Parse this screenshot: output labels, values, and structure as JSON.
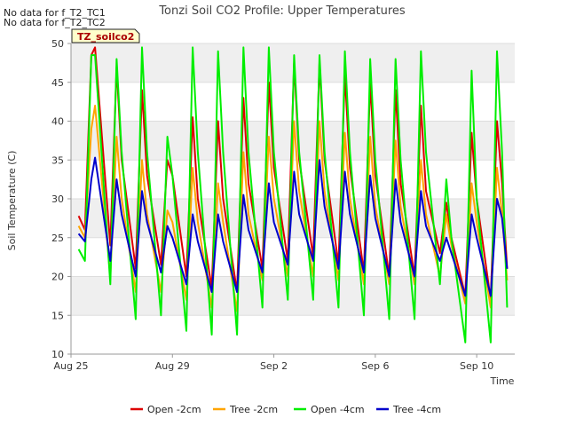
{
  "notes": [
    "No data for f_T2_TC1",
    "No data for f_T2_TC2"
  ],
  "chart_data": {
    "type": "line",
    "title": "Tonzi Soil CO2 Profile: Upper Temperatures",
    "site_badge": "TZ_soilco2",
    "xlabel": "Time",
    "ylabel": "Soil Temperature (C)",
    "ylim": [
      10,
      50
    ],
    "yticks": [
      10,
      15,
      20,
      25,
      30,
      35,
      40,
      45,
      50
    ],
    "xlim_days": [
      0,
      17.5
    ],
    "xticks": [
      {
        "day": 0,
        "label": "Aug 25"
      },
      {
        "day": 4,
        "label": "Aug 29"
      },
      {
        "day": 8,
        "label": "Sep 2"
      },
      {
        "day": 12,
        "label": "Sep 6"
      },
      {
        "day": 16,
        "label": "Sep 10"
      }
    ],
    "grid": "horizontal bands",
    "legend_position": "bottom",
    "series": [
      {
        "name": "Open -2cm",
        "color": "#dd0000",
        "days": [
          0.3,
          0.55,
          0.8,
          0.95,
          1.55,
          1.8,
          2.0,
          2.55,
          2.8,
          3.0,
          3.55,
          3.8,
          4.0,
          4.55,
          4.8,
          5.0,
          5.55,
          5.8,
          6.0,
          6.55,
          6.8,
          7.0,
          7.55,
          7.8,
          8.0,
          8.55,
          8.8,
          9.0,
          9.55,
          9.8,
          10.0,
          10.55,
          10.8,
          11.0,
          11.55,
          11.8,
          12.0,
          12.55,
          12.8,
          13.0,
          13.55,
          13.8,
          14.0,
          14.55,
          14.8,
          15.0,
          15.55,
          15.8,
          16.0,
          16.55,
          16.8,
          17.0,
          17.2
        ],
        "values": [
          27.8,
          26.0,
          48.5,
          49.5,
          24.0,
          47.0,
          35.0,
          21.0,
          44.0,
          33.0,
          21.5,
          35.0,
          33.0,
          20.0,
          40.5,
          30.0,
          18.5,
          40.0,
          30.0,
          18.0,
          43.0,
          32.0,
          21.0,
          45.0,
          34.0,
          22.0,
          47.5,
          35.0,
          22.5,
          47.5,
          35.0,
          21.5,
          46.0,
          34.0,
          20.5,
          45.0,
          33.0,
          20.0,
          44.0,
          32.0,
          20.0,
          42.0,
          31.0,
          23.0,
          29.5,
          25.0,
          17.5,
          38.5,
          30.0,
          17.0,
          40.0,
          32.0,
          21.0
        ]
      },
      {
        "name": "Tree -2cm",
        "color": "#ffa500",
        "days": [
          0.3,
          0.55,
          0.8,
          0.95,
          1.55,
          1.8,
          2.0,
          2.55,
          2.8,
          3.0,
          3.55,
          3.8,
          4.0,
          4.55,
          4.8,
          5.0,
          5.55,
          5.8,
          6.0,
          6.55,
          6.8,
          7.0,
          7.55,
          7.8,
          8.0,
          8.55,
          8.8,
          9.0,
          9.55,
          9.8,
          10.0,
          10.55,
          10.8,
          11.0,
          11.55,
          11.8,
          12.0,
          12.55,
          12.8,
          13.0,
          13.55,
          13.8,
          14.0,
          14.55,
          14.8,
          15.0,
          15.55,
          15.8,
          16.0,
          16.55,
          16.8,
          17.0,
          17.2
        ],
        "values": [
          26.5,
          25.0,
          39.0,
          42.0,
          20.0,
          38.0,
          30.0,
          18.0,
          35.0,
          28.0,
          18.0,
          28.5,
          27.0,
          17.0,
          34.0,
          27.0,
          16.0,
          32.0,
          27.0,
          15.5,
          36.0,
          28.0,
          19.5,
          38.0,
          30.0,
          20.0,
          40.0,
          31.0,
          20.0,
          40.0,
          31.0,
          19.5,
          38.5,
          30.0,
          19.0,
          38.0,
          29.0,
          19.0,
          37.5,
          29.0,
          19.0,
          35.0,
          28.0,
          20.0,
          28.0,
          24.0,
          16.5,
          32.0,
          27.0,
          16.0,
          34.0,
          28.0,
          19.5
        ]
      },
      {
        "name": "Open -4cm",
        "color": "#00ee00",
        "days": [
          0.3,
          0.55,
          0.8,
          0.95,
          1.55,
          1.8,
          2.0,
          2.55,
          2.8,
          3.0,
          3.55,
          3.8,
          4.0,
          4.55,
          4.8,
          5.0,
          5.55,
          5.8,
          6.0,
          6.55,
          6.8,
          7.0,
          7.55,
          7.8,
          8.0,
          8.55,
          8.8,
          9.0,
          9.55,
          9.8,
          10.0,
          10.55,
          10.8,
          11.0,
          11.55,
          11.8,
          12.0,
          12.55,
          12.8,
          13.0,
          13.55,
          13.8,
          14.0,
          14.55,
          14.8,
          15.0,
          15.55,
          15.8,
          16.0,
          16.55,
          16.8,
          17.0,
          17.2
        ],
        "values": [
          23.5,
          22.0,
          48.5,
          48.5,
          19.0,
          48.0,
          36.0,
          14.5,
          49.5,
          36.0,
          15.0,
          38.0,
          33.0,
          13.0,
          49.5,
          36.0,
          12.5,
          49.0,
          36.0,
          12.5,
          49.5,
          36.0,
          16.0,
          49.5,
          36.0,
          17.0,
          48.5,
          36.0,
          17.0,
          48.5,
          36.0,
          16.0,
          49.0,
          36.0,
          15.0,
          48.0,
          35.0,
          14.5,
          48.0,
          35.0,
          14.5,
          49.0,
          36.0,
          19.0,
          32.5,
          25.0,
          11.5,
          46.5,
          30.0,
          11.5,
          49.0,
          36.0,
          16.0
        ]
      },
      {
        "name": "Tree -4cm",
        "color": "#0000cc",
        "days": [
          0.3,
          0.55,
          0.8,
          0.95,
          1.55,
          1.8,
          2.0,
          2.55,
          2.8,
          3.0,
          3.55,
          3.8,
          4.0,
          4.55,
          4.8,
          5.0,
          5.55,
          5.8,
          6.0,
          6.55,
          6.8,
          7.0,
          7.55,
          7.8,
          8.0,
          8.55,
          8.8,
          9.0,
          9.55,
          9.8,
          10.0,
          10.55,
          10.8,
          11.0,
          11.55,
          11.8,
          12.0,
          12.55,
          12.8,
          13.0,
          13.55,
          13.8,
          14.0,
          14.55,
          14.8,
          15.0,
          15.55,
          15.8,
          16.0,
          16.55,
          16.8,
          17.0,
          17.2
        ],
        "values": [
          25.5,
          24.5,
          32.5,
          35.3,
          22.0,
          32.5,
          28.0,
          20.0,
          31.0,
          27.0,
          20.5,
          26.5,
          25.0,
          19.0,
          28.0,
          24.5,
          18.0,
          28.0,
          24.5,
          18.0,
          30.5,
          26.0,
          20.5,
          32.0,
          27.0,
          21.5,
          33.5,
          28.0,
          22.0,
          35.0,
          29.0,
          21.0,
          33.5,
          28.0,
          20.5,
          33.0,
          27.5,
          20.0,
          32.5,
          27.0,
          20.0,
          31.0,
          26.5,
          22.0,
          25.0,
          23.0,
          17.5,
          28.0,
          25.0,
          17.5,
          30.0,
          27.5,
          21.0
        ]
      }
    ]
  }
}
